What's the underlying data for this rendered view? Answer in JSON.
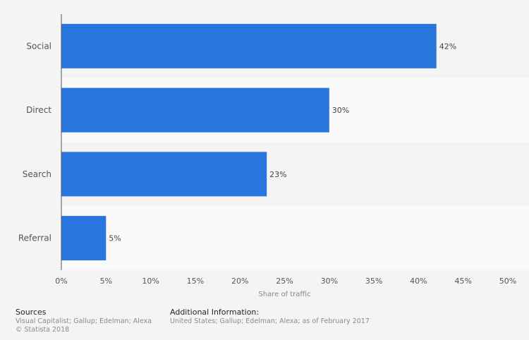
{
  "chart_data": {
    "type": "bar",
    "orientation": "horizontal",
    "categories": [
      "Social",
      "Direct",
      "Search",
      "Referral"
    ],
    "values": [
      42,
      30,
      23,
      5
    ],
    "value_labels": [
      "42%",
      "30%",
      "23%",
      "5%"
    ],
    "xlabel": "Share of traffic",
    "xlim": [
      0,
      50
    ],
    "xticks": [
      0,
      5,
      10,
      15,
      20,
      25,
      30,
      35,
      40,
      45,
      50
    ],
    "xtick_labels": [
      "0%",
      "5%",
      "10%",
      "15%",
      "20%",
      "25%",
      "30%",
      "35%",
      "40%",
      "45%",
      "50%"
    ],
    "bar_color": "#2875dd",
    "grid": false
  },
  "footer": {
    "sources_title": "Sources",
    "sources_text": "Visual Capitalist; Gallup; Edelman; Alexa",
    "copyright": "© Statista 2018",
    "info_title": "Additional Information:",
    "info_text": "United States; Gallup; Edelman; Alexa; as of February 2017"
  }
}
